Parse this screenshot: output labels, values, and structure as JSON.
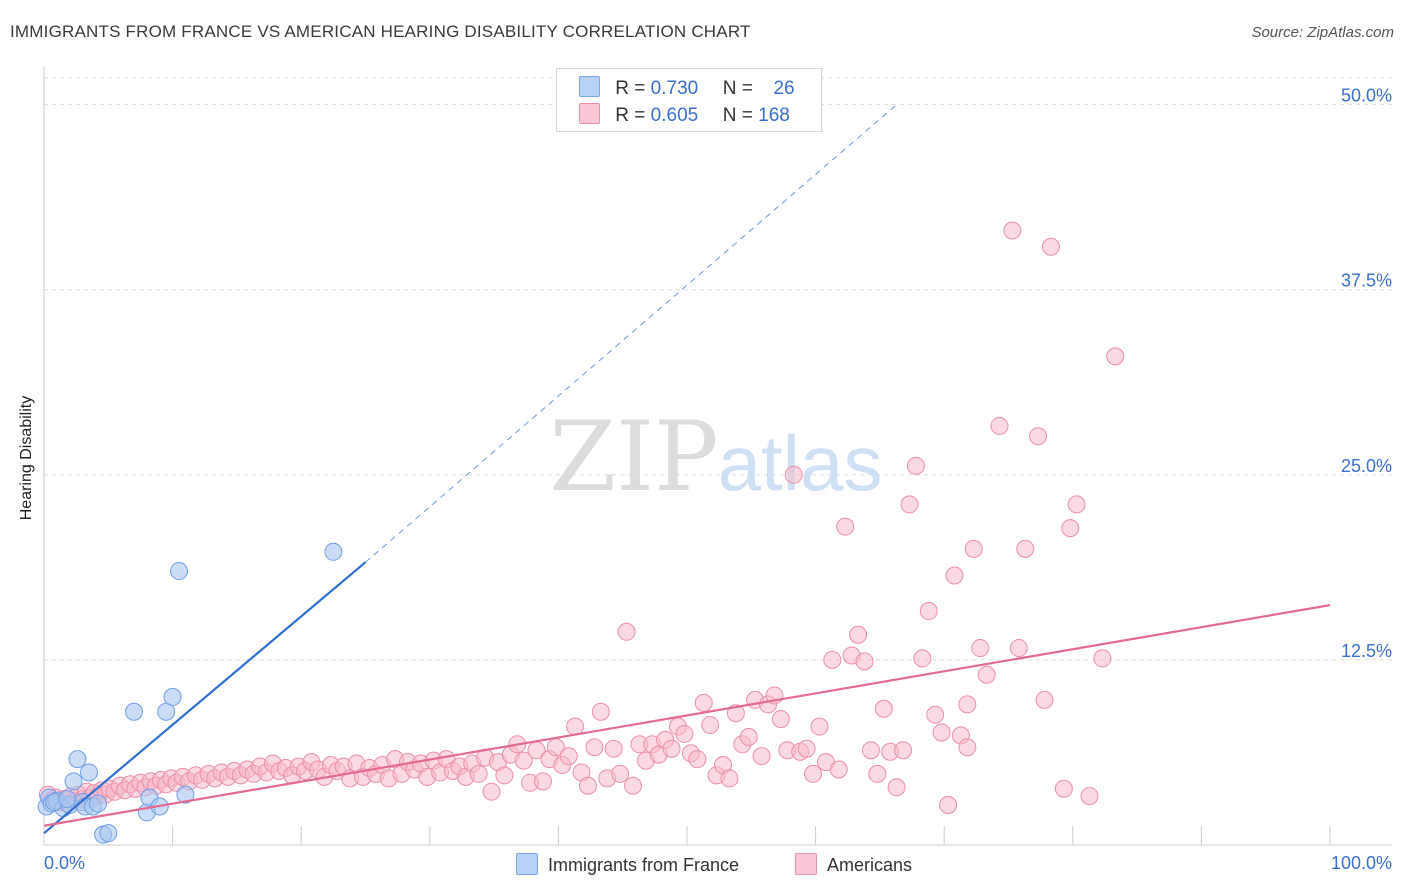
{
  "header": {
    "title": "IMMIGRANTS FROM FRANCE VS AMERICAN HEARING DISABILITY CORRELATION CHART",
    "source": "Source: ZipAtlas.com"
  },
  "watermark": {
    "zip": "ZIP",
    "atlas": "atlas"
  },
  "colors": {
    "blue_fill": "#a9c7f0",
    "blue_stroke": "#6f9ee6",
    "blue_line": "#2d6fd2",
    "pink_fill": "#f6bacb",
    "pink_stroke": "#ec8fab",
    "pink_line": "#e36b93",
    "tick_label": "#3a6fce",
    "grid": "#dcdcdc"
  },
  "legend_top": {
    "r_label": "R =",
    "n_label": "N =",
    "rows": [
      {
        "series": "Immigrants from France",
        "r": "0.730",
        "n": "26"
      },
      {
        "series": "Americans",
        "r": "0.605",
        "n": "168"
      }
    ]
  },
  "legend_bottom": [
    "Immigrants from France",
    "Americans"
  ],
  "chart_data": {
    "type": "scatter",
    "title": "IMMIGRANTS FROM FRANCE VS AMERICAN HEARING DISABILITY CORRELATION CHART",
    "xlabel": "",
    "ylabel": "Hearing Disability",
    "xlim": [
      0,
      100
    ],
    "ylim": [
      0,
      52
    ],
    "x_tick_labels": [
      {
        "value": 0,
        "label": "0.0%"
      },
      {
        "value": 100,
        "label": "100.0%"
      }
    ],
    "y_ticks": [
      {
        "value": 12.5,
        "label": "12.5%"
      },
      {
        "value": 25.0,
        "label": "25.0%"
      },
      {
        "value": 37.5,
        "label": "37.5%"
      },
      {
        "value": 50.0,
        "label": "50.0%"
      }
    ],
    "x_minor_ticks": [
      10,
      20,
      30,
      40,
      50,
      60,
      70,
      80,
      90,
      100
    ],
    "series": [
      {
        "name": "Immigrants from France",
        "r": 0.73,
        "n": 26,
        "points": [
          [
            0.2,
            2.6
          ],
          [
            0.4,
            3.2
          ],
          [
            0.6,
            2.8
          ],
          [
            1.0,
            3.0
          ],
          [
            1.5,
            2.5
          ],
          [
            2.0,
            2.7
          ],
          [
            2.3,
            4.3
          ],
          [
            2.6,
            5.8
          ],
          [
            3.0,
            2.9
          ],
          [
            3.2,
            2.6
          ],
          [
            3.5,
            4.9
          ],
          [
            3.8,
            2.6
          ],
          [
            4.2,
            2.8
          ],
          [
            4.6,
            0.7
          ],
          [
            5.0,
            0.8
          ],
          [
            7.0,
            9.0
          ],
          [
            8.0,
            2.2
          ],
          [
            8.2,
            3.2
          ],
          [
            9.0,
            2.6
          ],
          [
            9.5,
            9.0
          ],
          [
            10.0,
            10.0
          ],
          [
            10.5,
            18.5
          ],
          [
            11.0,
            3.4
          ],
          [
            22.5,
            19.8
          ],
          [
            0.8,
            2.9
          ],
          [
            1.8,
            3.1
          ]
        ],
        "trend": {
          "x0": 0,
          "y0": 0.8,
          "x1": 25.0,
          "y1": 19.1,
          "extend_to_x": 66.3,
          "extend_to_y": 50.0
        }
      },
      {
        "name": "Americans",
        "r": 0.605,
        "n": 168,
        "points": [
          [
            0.3,
            3.4
          ],
          [
            0.6,
            3.0
          ],
          [
            0.9,
            3.2
          ],
          [
            1.2,
            2.9
          ],
          [
            1.5,
            3.1
          ],
          [
            1.8,
            2.8
          ],
          [
            2.1,
            3.3
          ],
          [
            2.4,
            3.0
          ],
          [
            2.7,
            3.4
          ],
          [
            3.0,
            3.1
          ],
          [
            3.3,
            3.6
          ],
          [
            3.6,
            3.2
          ],
          [
            3.9,
            3.5
          ],
          [
            4.2,
            3.3
          ],
          [
            4.5,
            3.7
          ],
          [
            4.8,
            3.4
          ],
          [
            5.1,
            3.8
          ],
          [
            5.5,
            3.6
          ],
          [
            5.9,
            4.0
          ],
          [
            6.3,
            3.7
          ],
          [
            6.7,
            4.1
          ],
          [
            7.1,
            3.8
          ],
          [
            7.5,
            4.2
          ],
          [
            7.9,
            3.9
          ],
          [
            8.3,
            4.3
          ],
          [
            8.7,
            4.0
          ],
          [
            9.1,
            4.4
          ],
          [
            9.5,
            4.1
          ],
          [
            9.9,
            4.5
          ],
          [
            10.3,
            4.2
          ],
          [
            10.8,
            4.6
          ],
          [
            11.3,
            4.3
          ],
          [
            11.8,
            4.7
          ],
          [
            12.3,
            4.4
          ],
          [
            12.8,
            4.8
          ],
          [
            13.3,
            4.5
          ],
          [
            13.8,
            4.9
          ],
          [
            14.3,
            4.6
          ],
          [
            14.8,
            5.0
          ],
          [
            15.3,
            4.7
          ],
          [
            15.8,
            5.1
          ],
          [
            16.3,
            4.8
          ],
          [
            16.8,
            5.3
          ],
          [
            17.3,
            4.9
          ],
          [
            17.8,
            5.5
          ],
          [
            18.3,
            5.0
          ],
          [
            18.8,
            5.2
          ],
          [
            19.3,
            4.7
          ],
          [
            19.8,
            5.3
          ],
          [
            20.3,
            5.0
          ],
          [
            20.8,
            5.6
          ],
          [
            21.3,
            5.1
          ],
          [
            21.8,
            4.6
          ],
          [
            22.3,
            5.4
          ],
          [
            22.8,
            5.0
          ],
          [
            23.3,
            5.3
          ],
          [
            23.8,
            4.5
          ],
          [
            24.3,
            5.5
          ],
          [
            24.8,
            4.6
          ],
          [
            25.3,
            5.2
          ],
          [
            25.8,
            4.8
          ],
          [
            26.3,
            5.4
          ],
          [
            26.8,
            4.5
          ],
          [
            27.3,
            5.8
          ],
          [
            27.8,
            4.8
          ],
          [
            28.3,
            5.6
          ],
          [
            28.8,
            5.1
          ],
          [
            29.3,
            5.5
          ],
          [
            29.8,
            4.6
          ],
          [
            30.3,
            5.7
          ],
          [
            30.8,
            4.9
          ],
          [
            31.3,
            5.8
          ],
          [
            31.8,
            5.0
          ],
          [
            32.3,
            5.3
          ],
          [
            32.8,
            4.6
          ],
          [
            33.3,
            5.5
          ],
          [
            33.8,
            4.8
          ],
          [
            34.3,
            5.9
          ],
          [
            34.8,
            3.6
          ],
          [
            35.3,
            5.6
          ],
          [
            35.8,
            4.7
          ],
          [
            36.3,
            6.1
          ],
          [
            36.8,
            6.8
          ],
          [
            37.3,
            5.7
          ],
          [
            37.8,
            4.2
          ],
          [
            38.3,
            6.4
          ],
          [
            38.8,
            4.3
          ],
          [
            39.3,
            5.8
          ],
          [
            39.8,
            6.6
          ],
          [
            40.3,
            5.4
          ],
          [
            40.8,
            6.0
          ],
          [
            41.3,
            8.0
          ],
          [
            41.8,
            4.9
          ],
          [
            42.3,
            4.0
          ],
          [
            42.8,
            6.6
          ],
          [
            43.3,
            9.0
          ],
          [
            43.8,
            4.5
          ],
          [
            44.3,
            6.5
          ],
          [
            44.8,
            4.8
          ],
          [
            45.3,
            14.4
          ],
          [
            45.8,
            4.0
          ],
          [
            46.3,
            6.8
          ],
          [
            46.8,
            5.7
          ],
          [
            47.3,
            6.8
          ],
          [
            47.8,
            6.1
          ],
          [
            48.3,
            7.1
          ],
          [
            48.8,
            6.5
          ],
          [
            49.3,
            8.0
          ],
          [
            49.8,
            7.5
          ],
          [
            50.3,
            6.2
          ],
          [
            50.8,
            5.8
          ],
          [
            51.3,
            9.6
          ],
          [
            51.8,
            8.1
          ],
          [
            52.3,
            4.7
          ],
          [
            52.8,
            5.4
          ],
          [
            53.3,
            4.5
          ],
          [
            53.8,
            8.9
          ],
          [
            54.3,
            6.8
          ],
          [
            54.8,
            7.3
          ],
          [
            55.3,
            9.8
          ],
          [
            55.8,
            6.0
          ],
          [
            56.3,
            9.5
          ],
          [
            56.8,
            10.1
          ],
          [
            57.3,
            8.5
          ],
          [
            57.8,
            6.4
          ],
          [
            58.3,
            25.0
          ],
          [
            58.8,
            6.3
          ],
          [
            59.3,
            6.5
          ],
          [
            59.8,
            4.8
          ],
          [
            60.3,
            8.0
          ],
          [
            60.8,
            5.6
          ],
          [
            61.3,
            12.5
          ],
          [
            61.8,
            5.1
          ],
          [
            62.3,
            21.5
          ],
          [
            62.8,
            12.8
          ],
          [
            63.3,
            14.2
          ],
          [
            63.8,
            12.4
          ],
          [
            64.3,
            6.4
          ],
          [
            64.8,
            4.8
          ],
          [
            65.3,
            9.2
          ],
          [
            65.8,
            6.3
          ],
          [
            66.3,
            3.9
          ],
          [
            66.8,
            6.4
          ],
          [
            67.3,
            23.0
          ],
          [
            67.8,
            25.6
          ],
          [
            68.3,
            12.6
          ],
          [
            68.8,
            15.8
          ],
          [
            69.3,
            8.8
          ],
          [
            69.8,
            7.6
          ],
          [
            70.3,
            2.7
          ],
          [
            70.8,
            18.2
          ],
          [
            71.3,
            7.4
          ],
          [
            71.8,
            6.6
          ],
          [
            72.3,
            20.0
          ],
          [
            72.8,
            13.3
          ],
          [
            73.3,
            11.5
          ],
          [
            74.3,
            28.3
          ],
          [
            75.3,
            41.5
          ],
          [
            75.8,
            13.3
          ],
          [
            76.3,
            20.0
          ],
          [
            77.3,
            27.6
          ],
          [
            77.8,
            9.8
          ],
          [
            78.3,
            40.4
          ],
          [
            79.3,
            3.8
          ],
          [
            79.8,
            21.4
          ],
          [
            80.3,
            23.0
          ],
          [
            81.3,
            3.3
          ],
          [
            82.3,
            12.6
          ],
          [
            83.3,
            33.0
          ],
          [
            71.8,
            9.5
          ]
        ],
        "trend": {
          "x0": 0,
          "y0": 1.3,
          "x1": 100,
          "y1": 16.2
        }
      }
    ]
  }
}
